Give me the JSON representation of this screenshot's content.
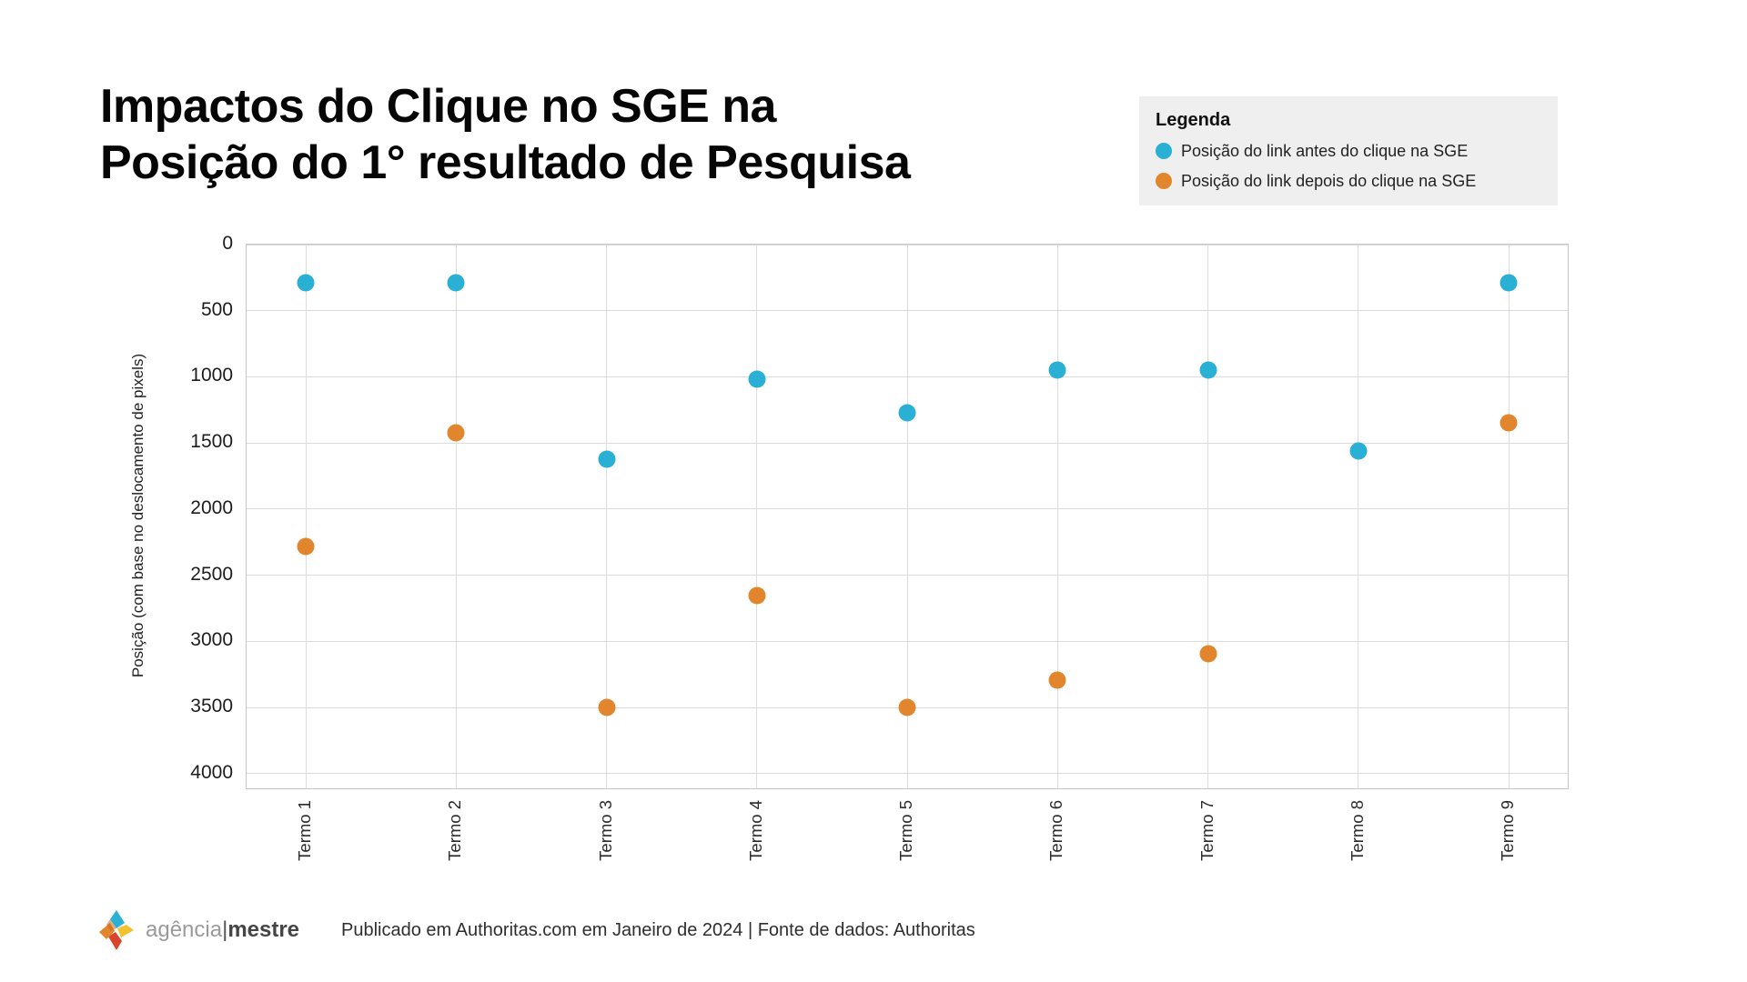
{
  "header": {
    "title_line1": "Impactos do Clique no SGE na",
    "title_line2": "Posição do 1° resultado de Pesquisa"
  },
  "legend": {
    "title": "Legenda",
    "items": [
      {
        "label": "Posição do link antes do clique na SGE",
        "color": "#29b0d4"
      },
      {
        "label": "Posição do link depois do clique na SGE",
        "color": "#e1862d"
      }
    ]
  },
  "chart_data": {
    "type": "scatter",
    "title": "Impactos do Clique no SGE na Posição do 1° resultado de Pesquisa",
    "xlabel": "",
    "ylabel": "Posição (com base no deslocamento de pixels)",
    "categories": [
      "Termo 1",
      "Termo 2",
      "Termo 3",
      "Termo 4",
      "Termo 5",
      "Termo 6",
      "Termo 7",
      "Termo 8",
      "Termo 9"
    ],
    "y_ticks": [
      0,
      500,
      1000,
      1500,
      2000,
      2500,
      3000,
      3500,
      4000
    ],
    "ylim": [
      0,
      4110
    ],
    "y_axis_inverted": true,
    "grid": true,
    "legend_position": "top-right",
    "series": [
      {
        "name": "Posição do link antes do clique na SGE",
        "key": "antes",
        "color": "#29b0d4",
        "values": [
          290,
          290,
          1620,
          1020,
          1270,
          950,
          950,
          1560,
          290
        ]
      },
      {
        "name": "Posição do link depois do clique na SGE",
        "key": "depois",
        "color": "#e1862d",
        "values": [
          2280,
          1420,
          3500,
          2650,
          3500,
          3290,
          3090,
          null,
          1350
        ]
      }
    ]
  },
  "footer": {
    "brand_light": "agência",
    "brand_sep": "|",
    "brand_bold": "mestre",
    "publication": "Publicado em Authoritas.com em Janeiro de 2024 | Fonte de dados: Authoritas"
  }
}
